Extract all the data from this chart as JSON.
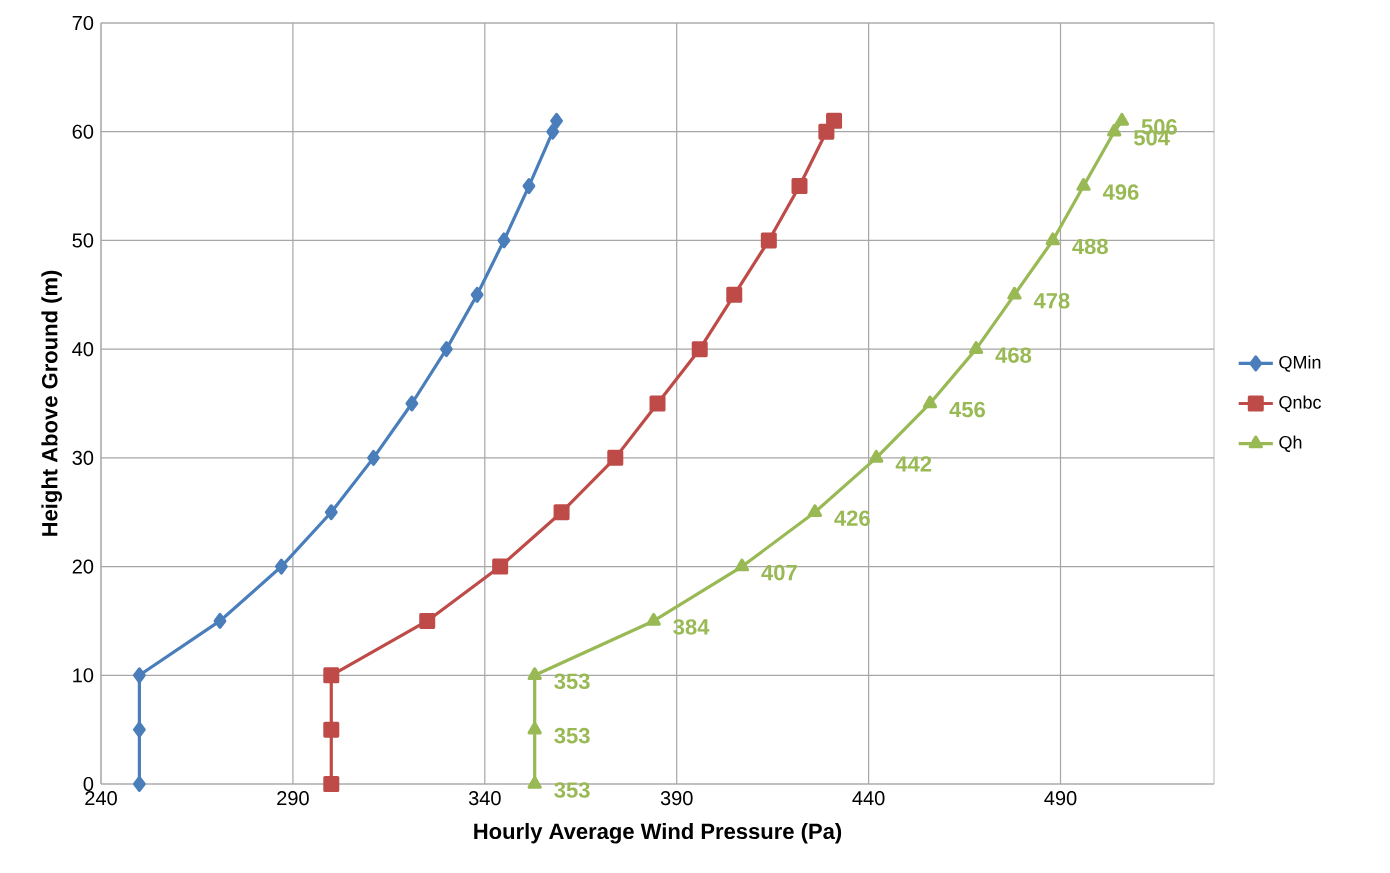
{
  "chart_data": {
    "type": "line",
    "orientation": "horizontal",
    "xlabel": "Hourly Average Wind Pressure (Pa)",
    "ylabel": "Height Above Ground (m)",
    "xlim": [
      240,
      530
    ],
    "xticks": [
      240,
      290,
      340,
      390,
      440,
      490
    ],
    "ylim": [
      0,
      70
    ],
    "yticks": [
      0,
      10,
      20,
      30,
      40,
      50,
      60,
      70
    ],
    "grid": true,
    "legend": "right",
    "series": [
      {
        "name": "QMin",
        "color": "#4a7ebb",
        "marker": "diamond",
        "x": [
          0,
          5,
          10,
          15,
          20,
          25,
          30,
          35,
          40,
          45,
          50,
          55,
          60,
          61
        ],
        "values": [
          250,
          250,
          250,
          271,
          287,
          300,
          311,
          321,
          330,
          338,
          345,
          351.5,
          357.7,
          358.7
        ]
      },
      {
        "name": "Qnbc",
        "color": "#be4b48",
        "marker": "square",
        "x": [
          0,
          5,
          10,
          15,
          20,
          25,
          30,
          35,
          40,
          45,
          50,
          55,
          60,
          61
        ],
        "values": [
          300,
          300,
          300,
          325,
          344,
          360,
          374,
          385,
          396,
          405,
          414,
          422,
          429,
          431
        ]
      },
      {
        "name": "Qh",
        "color": "#98b954",
        "marker": "triangle",
        "x": [
          0,
          5,
          10,
          15,
          20,
          25,
          30,
          35,
          40,
          45,
          50,
          55,
          60,
          61
        ],
        "values": [
          353,
          353,
          353,
          384,
          407,
          426,
          442,
          456,
          468,
          478,
          488,
          496,
          504,
          506
        ],
        "value_labels": [
          "353",
          "353",
          "353",
          "384",
          "407",
          "426",
          "442",
          "456",
          "468",
          "478",
          "488",
          "496",
          "504",
          "506"
        ]
      }
    ]
  }
}
